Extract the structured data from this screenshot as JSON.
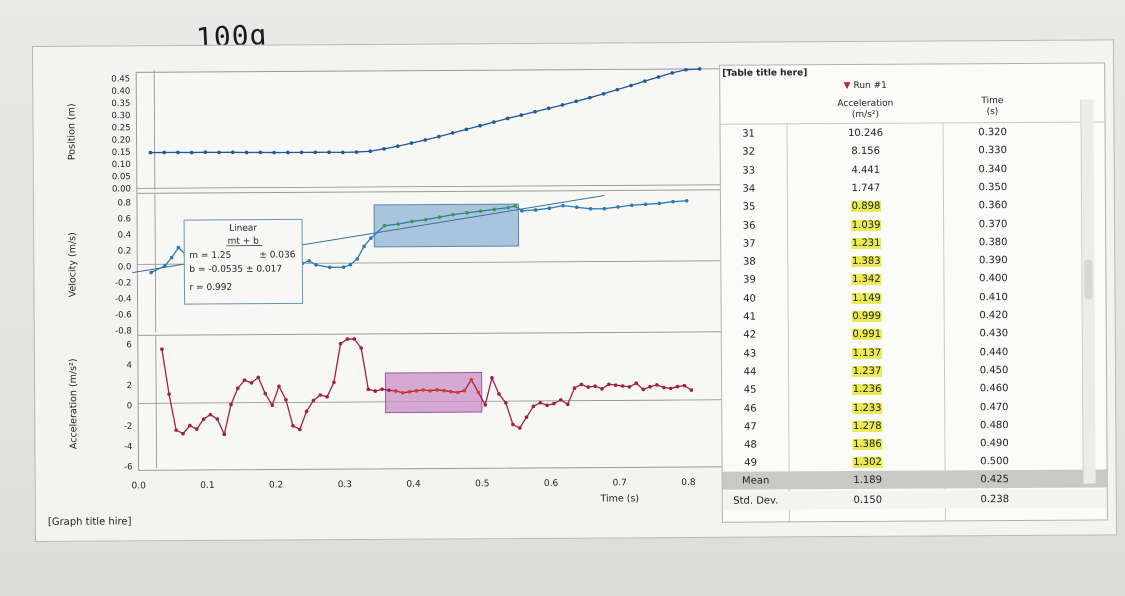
{
  "handwritten_note": "100g",
  "graph_title": "[Graph title hire]",
  "graphs": {
    "x_axis": {
      "label": "Time (s)",
      "ticks": [
        "0.0",
        "0.1",
        "0.2",
        "0.3",
        "0.4",
        "0.5",
        "0.6",
        "0.7",
        "0.8"
      ]
    },
    "position": {
      "ylabel": "Position (m)",
      "ticks": [
        "0.45",
        "0.40",
        "0.35",
        "0.30",
        "0.25",
        "0.20",
        "0.15",
        "0.10",
        "0.05",
        "0.00"
      ],
      "color": "#1f5a96"
    },
    "velocity": {
      "ylabel": "Velocity (m/s)",
      "ticks": [
        "0.8",
        "0.6",
        "0.4",
        "0.2",
        "0.0",
        "-0.2",
        "-0.4",
        "-0.6",
        "-0.8"
      ],
      "color": "#2c7bb6",
      "fit_box": {
        "title": "Linear",
        "formula": "mt + b",
        "m": "m = 1.25",
        "m_err": "± 0.036",
        "b": "b = -0.0535 ± 0.017",
        "r": "r = 0.992"
      }
    },
    "acceleration": {
      "ylabel": "Acceleration (m/s²)",
      "ticks": [
        "6",
        "4",
        "2",
        "0",
        "-2",
        "-4",
        "-6"
      ],
      "color": "#a0204a"
    }
  },
  "chart_data": [
    {
      "type": "line",
      "ylabel": "Position (m)",
      "xlabel": "Time (s)",
      "xlim": [
        0,
        0.82
      ],
      "ylim": [
        0,
        0.45
      ],
      "x": [
        0.02,
        0.04,
        0.06,
        0.08,
        0.1,
        0.12,
        0.14,
        0.16,
        0.18,
        0.2,
        0.22,
        0.24,
        0.26,
        0.28,
        0.3,
        0.32,
        0.34,
        0.36,
        0.38,
        0.4,
        0.42,
        0.44,
        0.46,
        0.48,
        0.5,
        0.52,
        0.54,
        0.56,
        0.58,
        0.6,
        0.62,
        0.64,
        0.66,
        0.68,
        0.7,
        0.72,
        0.74,
        0.76,
        0.78,
        0.8,
        0.82
      ],
      "y": [
        0.141,
        0.141,
        0.141,
        0.14,
        0.141,
        0.14,
        0.14,
        0.139,
        0.139,
        0.138,
        0.138,
        0.138,
        0.138,
        0.138,
        0.137,
        0.138,
        0.141,
        0.15,
        0.16,
        0.172,
        0.184,
        0.197,
        0.211,
        0.225,
        0.239,
        0.253,
        0.267,
        0.28,
        0.293,
        0.306,
        0.319,
        0.333,
        0.347,
        0.362,
        0.378,
        0.394,
        0.411,
        0.427,
        0.443,
        0.455,
        0.465
      ]
    },
    {
      "type": "line",
      "ylabel": "Velocity (m/s)",
      "xlabel": "Time (s)",
      "xlim": [
        0,
        0.82
      ],
      "ylim": [
        -0.8,
        0.8
      ],
      "x": [
        0.02,
        0.04,
        0.05,
        0.06,
        0.07,
        0.08,
        0.1,
        0.12,
        0.14,
        0.16,
        0.18,
        0.2,
        0.22,
        0.24,
        0.25,
        0.26,
        0.28,
        0.3,
        0.31,
        0.32,
        0.33,
        0.34,
        0.36,
        0.38,
        0.4,
        0.42,
        0.44,
        0.46,
        0.48,
        0.5,
        0.52,
        0.54,
        0.55,
        0.56,
        0.58,
        0.6,
        0.62,
        0.64,
        0.66,
        0.68,
        0.7,
        0.72,
        0.74,
        0.76,
        0.78,
        0.8
      ],
      "y": [
        -0.1,
        -0.02,
        0.08,
        0.2,
        0.12,
        0.18,
        0.15,
        0.1,
        0.09,
        0.07,
        0.06,
        0.05,
        0.02,
        0.0,
        0.03,
        -0.02,
        -0.05,
        -0.05,
        -0.02,
        0.05,
        0.2,
        0.3,
        0.45,
        0.47,
        0.5,
        0.52,
        0.55,
        0.58,
        0.6,
        0.62,
        0.64,
        0.66,
        0.68,
        0.62,
        0.63,
        0.65,
        0.68,
        0.66,
        0.64,
        0.64,
        0.66,
        0.68,
        0.69,
        0.7,
        0.72,
        0.73
      ]
    },
    {
      "type": "line",
      "ylabel": "Acceleration (m/s²)",
      "xlabel": "Time (s)",
      "xlim": [
        0,
        0.82
      ],
      "ylim": [
        -7,
        7
      ],
      "x": [
        0.035,
        0.045,
        0.055,
        0.065,
        0.075,
        0.085,
        0.095,
        0.105,
        0.115,
        0.125,
        0.135,
        0.145,
        0.155,
        0.165,
        0.175,
        0.185,
        0.195,
        0.205,
        0.215,
        0.225,
        0.235,
        0.245,
        0.255,
        0.265,
        0.275,
        0.285,
        0.295,
        0.305,
        0.315,
        0.325,
        0.335,
        0.345,
        0.355,
        0.365,
        0.375,
        0.385,
        0.395,
        0.405,
        0.415,
        0.425,
        0.435,
        0.445,
        0.455,
        0.465,
        0.475,
        0.485,
        0.495,
        0.505,
        0.515,
        0.525,
        0.535,
        0.545,
        0.555,
        0.565,
        0.575,
        0.585,
        0.595,
        0.605,
        0.615,
        0.625,
        0.635,
        0.645,
        0.655,
        0.665,
        0.675,
        0.685,
        0.695,
        0.705,
        0.715,
        0.725,
        0.735,
        0.745,
        0.755,
        0.765,
        0.775,
        0.785,
        0.795,
        0.805
      ],
      "y": [
        6,
        1,
        -3,
        -3.4,
        -2.5,
        -2.9,
        -1.8,
        -1.3,
        -1.8,
        -3.5,
        -0.2,
        1.6,
        2.5,
        2.2,
        2.8,
        1.0,
        -0.3,
        1.8,
        0.3,
        -2.6,
        -3.0,
        -1.0,
        0.2,
        0.8,
        0.6,
        2.2,
        6.5,
        7,
        7,
        6,
        1.4,
        1.2,
        1.4,
        1.3,
        1.2,
        1.0,
        1.1,
        1.2,
        1.3,
        1.2,
        1.3,
        1.2,
        1.1,
        1.0,
        1.2,
        2.4,
        1.0,
        -0.4,
        2.6,
        0.8,
        -0.2,
        -2.6,
        -3.0,
        -1.8,
        -0.6,
        -0.2,
        -0.5,
        -0.3,
        0.1,
        -0.4,
        1.4,
        1.8,
        1.5,
        1.6,
        1.3,
        1.8,
        1.7,
        1.6,
        1.5,
        1.9,
        1.2,
        1.5,
        1.7,
        1.4,
        1.3,
        1.5,
        1.6,
        1.1
      ]
    }
  ],
  "table": {
    "title": "[Table title here]",
    "run_label": "Run #1",
    "columns": {
      "acceleration": [
        "Acceleration",
        "(m/s²)"
      ],
      "time": [
        "Time",
        "(s)"
      ]
    },
    "rows": [
      {
        "idx": "31",
        "acc": "10.246",
        "time": "0.320",
        "hl": false
      },
      {
        "idx": "32",
        "acc": "8.156",
        "time": "0.330",
        "hl": false
      },
      {
        "idx": "33",
        "acc": "4.441",
        "time": "0.340",
        "hl": false
      },
      {
        "idx": "34",
        "acc": "1.747",
        "time": "0.350",
        "hl": false
      },
      {
        "idx": "35",
        "acc": "0.898",
        "time": "0.360",
        "hl": true
      },
      {
        "idx": "36",
        "acc": "1.039",
        "time": "0.370",
        "hl": true
      },
      {
        "idx": "37",
        "acc": "1.231",
        "time": "0.380",
        "hl": true
      },
      {
        "idx": "38",
        "acc": "1.383",
        "time": "0.390",
        "hl": true
      },
      {
        "idx": "39",
        "acc": "1.342",
        "time": "0.400",
        "hl": true
      },
      {
        "idx": "40",
        "acc": "1.149",
        "time": "0.410",
        "hl": true
      },
      {
        "idx": "41",
        "acc": "0.999",
        "time": "0.420",
        "hl": true
      },
      {
        "idx": "42",
        "acc": "0.991",
        "time": "0.430",
        "hl": true
      },
      {
        "idx": "43",
        "acc": "1.137",
        "time": "0.440",
        "hl": true
      },
      {
        "idx": "44",
        "acc": "1.237",
        "time": "0.450",
        "hl": true
      },
      {
        "idx": "45",
        "acc": "1.236",
        "time": "0.460",
        "hl": true
      },
      {
        "idx": "46",
        "acc": "1.233",
        "time": "0.470",
        "hl": true
      },
      {
        "idx": "47",
        "acc": "1.278",
        "time": "0.480",
        "hl": true
      },
      {
        "idx": "48",
        "acc": "1.386",
        "time": "0.490",
        "hl": true
      },
      {
        "idx": "49",
        "acc": "1.302",
        "time": "0.500",
        "hl": true
      }
    ],
    "stats": [
      {
        "label": "Mean",
        "acc": "1.189",
        "time": "0.425"
      },
      {
        "label": "Std. Dev.",
        "acc": "0.150",
        "time": "0.238"
      }
    ]
  }
}
